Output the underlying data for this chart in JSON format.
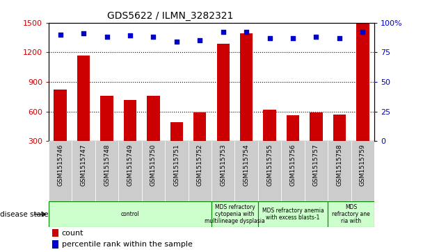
{
  "title": "GDS5622 / ILMN_3282321",
  "samples": [
    "GSM1515746",
    "GSM1515747",
    "GSM1515748",
    "GSM1515749",
    "GSM1515750",
    "GSM1515751",
    "GSM1515752",
    "GSM1515753",
    "GSM1515754",
    "GSM1515755",
    "GSM1515756",
    "GSM1515757",
    "GSM1515758",
    "GSM1515759"
  ],
  "counts": [
    820,
    1170,
    760,
    720,
    760,
    490,
    590,
    1290,
    1390,
    620,
    560,
    590,
    570,
    1490
  ],
  "percentiles": [
    90,
    91,
    88,
    89,
    88,
    84,
    85,
    92,
    92,
    87,
    87,
    88,
    87,
    92
  ],
  "bar_color": "#cc0000",
  "dot_color": "#0000cc",
  "ylim_left": [
    300,
    1500
  ],
  "ylim_right": [
    0,
    100
  ],
  "yticks_left": [
    300,
    600,
    900,
    1200,
    1500
  ],
  "yticks_right": [
    0,
    25,
    50,
    75,
    100
  ],
  "grid_values": [
    600,
    900,
    1200
  ],
  "disease_groups": [
    {
      "label": "control",
      "start": 0,
      "end": 7,
      "color": "#ccffcc"
    },
    {
      "label": "MDS refractory\ncytopenia with\nmultilineage dysplasia",
      "start": 7,
      "end": 9,
      "color": "#ccffcc"
    },
    {
      "label": "MDS refractory anemia\nwith excess blasts-1",
      "start": 9,
      "end": 12,
      "color": "#ccffcc"
    },
    {
      "label": "MDS\nrefractory ane\nria with",
      "start": 12,
      "end": 14,
      "color": "#ccffcc"
    }
  ],
  "legend_count_label": "count",
  "legend_pct_label": "percentile rank within the sample",
  "disease_state_label": "disease state",
  "background_color": "#ffffff",
  "tick_area_color": "#cccccc",
  "disease_area_color": "#ccffcc",
  "border_color": "#008800"
}
